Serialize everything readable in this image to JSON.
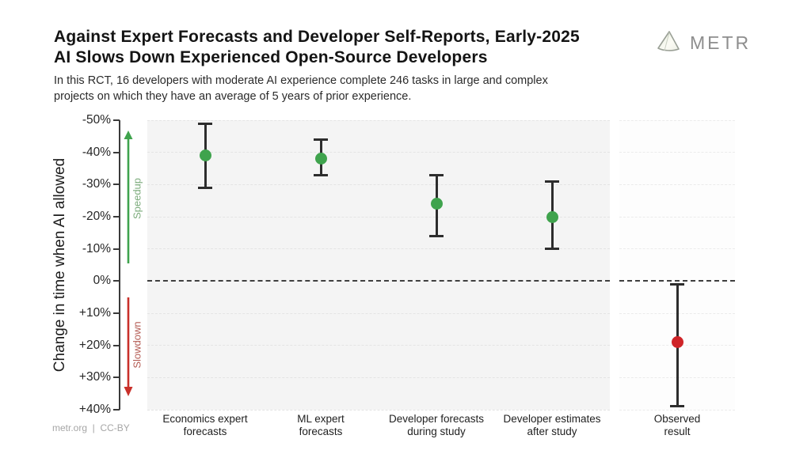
{
  "header": {
    "title": "Against Expert Forecasts and Developer Self-Reports, Early-2025\nAI Slows Down Experienced Open-Source Developers",
    "subtitle": "In this RCT, 16 developers with moderate AI experience complete 246 tasks in large and complex\nprojects on which they have an average of 5 years of prior experience.",
    "logo_text": "METR"
  },
  "footer": {
    "credit": "metr.org  |  CC-BY"
  },
  "chart_data": {
    "type": "scatter",
    "title": "Against Expert Forecasts and Developer Self-Reports, Early-2025 AI Slows Down Experienced Open-Source Developers",
    "ylabel": "Change in time when AI allowed",
    "ylim": [
      -50,
      40
    ],
    "grid": "dashed horizontal lines every 10%",
    "zero_line": 0,
    "yticks": [
      {
        "v": -50,
        "label": "-50%"
      },
      {
        "v": -40,
        "label": "-40%"
      },
      {
        "v": -30,
        "label": "-30%"
      },
      {
        "v": -20,
        "label": "-20%"
      },
      {
        "v": -10,
        "label": "-10%"
      },
      {
        "v": 0,
        "label": "0%"
      },
      {
        "v": 10,
        "label": "+10%"
      },
      {
        "v": 20,
        "label": "+20%"
      },
      {
        "v": 30,
        "label": "+30%"
      },
      {
        "v": 40,
        "label": "+40%"
      }
    ],
    "annotations": {
      "speedup": {
        "label": "Speedup",
        "arrow_color": "#3fa34d",
        "text_color": "#7bab7b",
        "direction": "up"
      },
      "slowdown": {
        "label": "Slowdown",
        "arrow_color": "#c9302a",
        "text_color": "#b35a52",
        "direction": "down"
      }
    },
    "error_bar_color": "#2d2d2d",
    "series": [
      {
        "category": "Economics expert\nforecasts",
        "value": -39,
        "ci": [
          -49,
          -29
        ],
        "color": "#3fa34d",
        "panel": "main"
      },
      {
        "category": "ML expert\nforecasts",
        "value": -38,
        "ci": [
          -44,
          -33
        ],
        "color": "#3fa34d",
        "panel": "main"
      },
      {
        "category": "Developer forecasts\nduring study",
        "value": -24,
        "ci": [
          -33,
          -14
        ],
        "color": "#3fa34d",
        "panel": "main"
      },
      {
        "category": "Developer estimates\nafter study",
        "value": -20,
        "ci": [
          -31,
          -10
        ],
        "color": "#3fa34d",
        "panel": "main"
      },
      {
        "category": "Observed\nresult",
        "value": 19,
        "ci": [
          1,
          39
        ],
        "color": "#cf2428",
        "panel": "observed"
      }
    ]
  }
}
